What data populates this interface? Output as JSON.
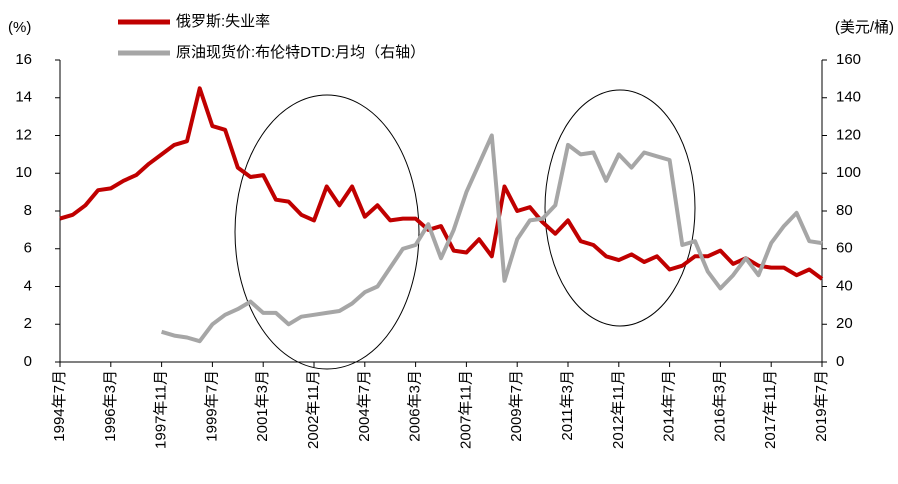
{
  "chart_data": {
    "type": "line",
    "y_axis_label": "(%)",
    "y2_axis_label": "(美元/桶)",
    "categories": [
      "1994年7月",
      null,
      null,
      null,
      "1996年3月",
      null,
      null,
      null,
      "1997年11月",
      null,
      null,
      null,
      "1999年7月",
      null,
      null,
      null,
      "2001年3月",
      null,
      null,
      null,
      "2002年11月",
      null,
      null,
      null,
      "2004年7月",
      null,
      null,
      null,
      "2006年3月",
      null,
      null,
      null,
      "2007年11月",
      null,
      null,
      null,
      "2009年7月",
      null,
      null,
      null,
      "2011年3月",
      null,
      null,
      null,
      "2012年11月",
      null,
      null,
      null,
      "2014年7月",
      null,
      null,
      null,
      "2016年3月",
      null,
      null,
      null,
      "2017年11月",
      null,
      null,
      null,
      "2019年7月"
    ],
    "series": [
      {
        "name": "俄罗斯:失业率",
        "color": "#c00000",
        "values": [
          7.6,
          7.8,
          8.3,
          9.1,
          9.2,
          9.6,
          9.9,
          10.5,
          11.0,
          11.5,
          11.7,
          14.5,
          12.5,
          12.3,
          10.3,
          9.8,
          9.9,
          8.6,
          8.5,
          7.8,
          7.5,
          9.3,
          8.3,
          9.3,
          7.7,
          8.3,
          7.5,
          7.6,
          7.6,
          7.0,
          7.2,
          5.9,
          5.8,
          6.5,
          5.6,
          9.3,
          8.0,
          8.2,
          7.4,
          6.8,
          7.5,
          6.4,
          6.2,
          5.6,
          5.4,
          5.7,
          5.3,
          5.6,
          4.9,
          5.1,
          5.6,
          5.6,
          5.9,
          5.2,
          5.5,
          5.1,
          5.0,
          5.0,
          4.6,
          4.9,
          4.4
        ]
      },
      {
        "name": "原油现货价:布伦特DTD:月均（右轴）",
        "color": "#a6a6a6",
        "axis": "y2",
        "values": [
          null,
          null,
          null,
          null,
          null,
          null,
          null,
          null,
          16,
          14,
          13,
          11,
          20,
          25,
          28,
          32,
          26,
          26,
          20,
          24,
          25,
          26,
          27,
          31,
          37,
          40,
          50,
          60,
          62,
          73,
          55,
          70,
          90,
          105,
          120,
          43,
          65,
          75,
          76,
          83,
          115,
          110,
          111,
          96,
          110,
          103,
          111,
          109,
          107,
          62,
          64,
          48,
          39,
          46,
          55,
          46,
          63,
          72,
          79,
          64,
          63
        ]
      }
    ],
    "ylim": [
      0,
      16
    ],
    "yticks": [
      0,
      2,
      4,
      6,
      8,
      10,
      12,
      14,
      16
    ],
    "y2lim": [
      0,
      160
    ],
    "y2ticks": [
      0,
      20,
      40,
      60,
      80,
      100,
      120,
      140,
      160
    ]
  }
}
